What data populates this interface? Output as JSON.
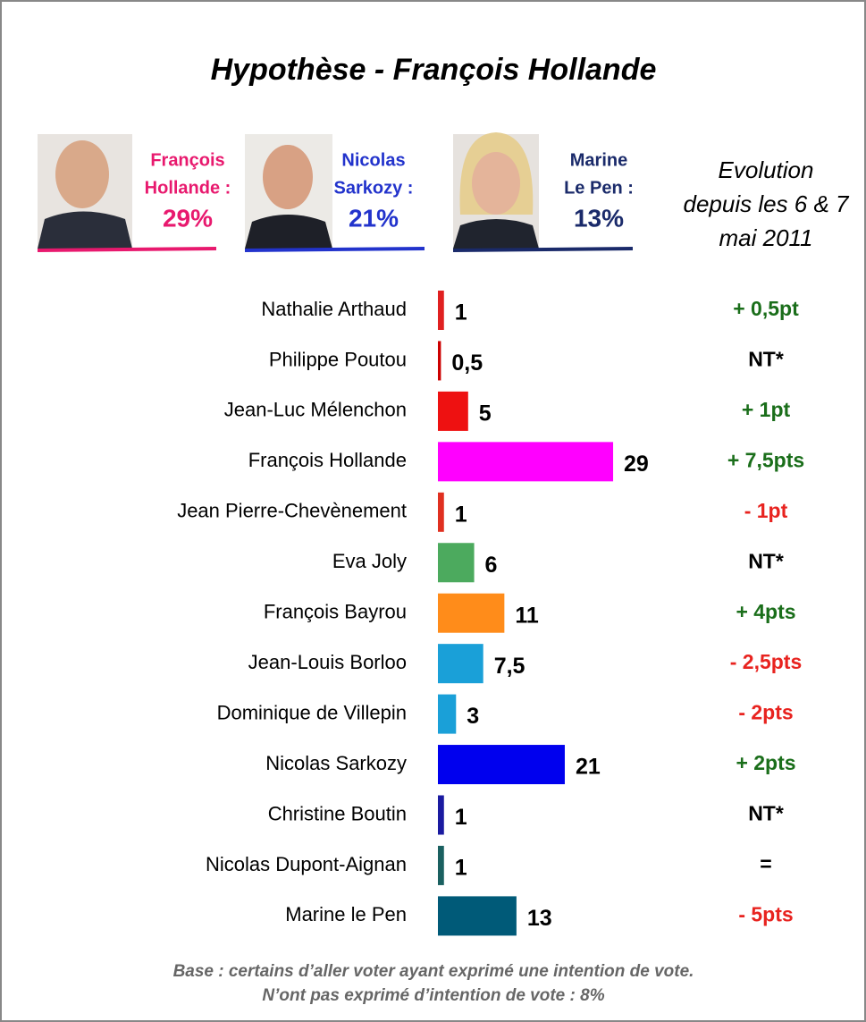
{
  "chart_data": {
    "type": "hbar",
    "title": "Hypothèse - François Hollande",
    "header": [
      {
        "lines": [
          "François",
          "Hollande :"
        ],
        "score": "29%",
        "color": "#e8196e"
      },
      {
        "lines": [
          "Nicolas",
          "Sarkozy :"
        ],
        "score": "21%",
        "color": "#2233cc"
      },
      {
        "lines": [
          "Marine",
          "Le Pen :"
        ],
        "score": "13%",
        "color": "#1a2a6a"
      }
    ],
    "evolution_title": [
      "Evolution",
      "depuis les 6 & 7",
      "mai 2011"
    ],
    "categories": [
      "Nathalie Arthaud",
      "Philippe Poutou",
      "Jean-Luc Mélenchon",
      "François Hollande",
      "Jean Pierre-Chevènement",
      "Eva Joly",
      "François Bayrou",
      "Jean-Louis Borloo",
      "Dominique de Villepin",
      "Nicolas Sarkozy",
      "Christine Boutin",
      "Nicolas Dupont-Aignan",
      "Marine le Pen"
    ],
    "values": [
      1,
      0.5,
      5,
      29,
      1,
      6,
      11,
      7.5,
      3,
      21,
      1,
      1,
      13
    ],
    "value_labels": [
      "1",
      "0,5",
      "5",
      "29",
      "1",
      "6",
      "11",
      "7,5",
      "3",
      "21",
      "1",
      "1",
      "13"
    ],
    "colors": [
      "#e02020",
      "#cc0000",
      "#ee1111",
      "#ff00ff",
      "#e03020",
      "#4caa5e",
      "#ff8c1a",
      "#1aa0d8",
      "#1aa0d8",
      "#0000ee",
      "#1a1aa0",
      "#1a6060",
      "#005a78"
    ],
    "evolution": [
      "+ 0,5pt",
      "NT*",
      "+ 1pt",
      "+ 7,5pts",
      "- 1pt",
      "NT*",
      "+ 4pts",
      "- 2,5pts",
      "- 2pts",
      "+ 2pts",
      "NT*",
      "=",
      "- 5pts"
    ],
    "evolution_colors": [
      "#1a6e1a",
      "#000000",
      "#1a6e1a",
      "#1a6e1a",
      "#e8231f",
      "#000000",
      "#1a6e1a",
      "#e8231f",
      "#e8231f",
      "#1a6e1a",
      "#000000",
      "#000000",
      "#e8231f"
    ],
    "footnote": [
      "Base : certains d’aller voter ayant exprimé une intention de vote.",
      "N’ont pas exprimé d’intention de vote : 8%"
    ]
  }
}
